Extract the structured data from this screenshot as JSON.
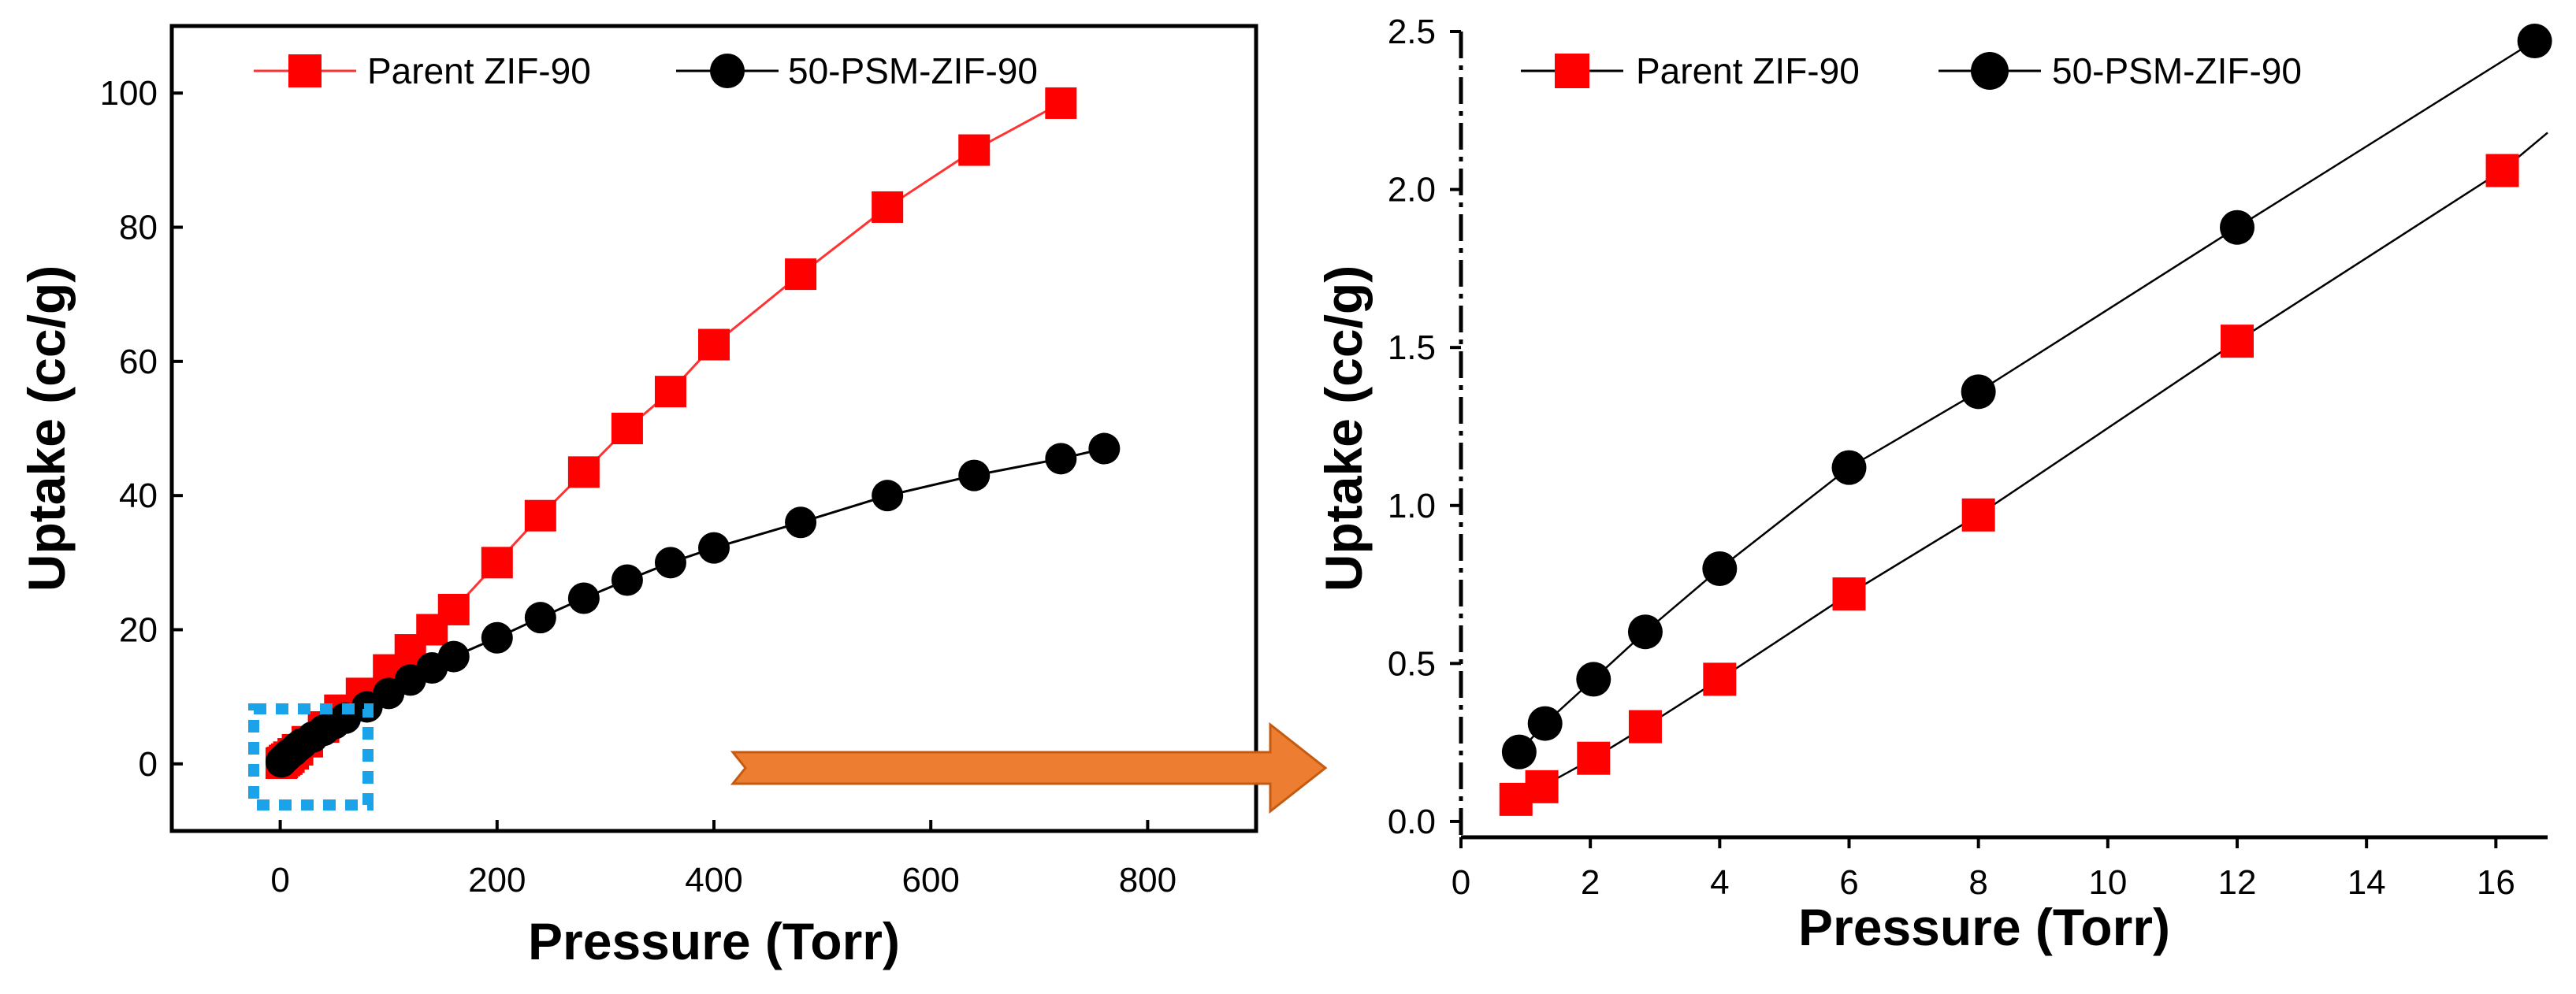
{
  "colors": {
    "parent": "#ff0000",
    "psm": "#000000",
    "parent_line_left": "#ff3333",
    "zoom_box": "#1aa3e8",
    "arrow_fill": "#ed7d31",
    "arrow_stroke": "#c55a11"
  },
  "chart_data": [
    {
      "type": "line",
      "xlabel": "Pressure (Torr)",
      "ylabel": "Uptake (cc/g)",
      "xlim": [
        -100,
        900
      ],
      "ylim": [
        -10,
        110
      ],
      "xticks": [
        0,
        200,
        400,
        600,
        800
      ],
      "yticks": [
        0,
        20,
        40,
        60,
        80,
        100
      ],
      "legend_position": "top",
      "series": [
        {
          "name": "Parent ZIF-90",
          "marker": "square",
          "x": [
            1,
            2,
            4,
            6,
            8,
            12,
            16,
            25,
            40,
            55,
            75,
            100,
            120,
            140,
            160,
            200,
            240,
            280,
            320,
            360,
            400,
            480,
            560,
            640,
            720
          ],
          "y": [
            0.1,
            0.2,
            0.5,
            0.7,
            1,
            1.5,
            2.1,
            3.3,
            5.5,
            8,
            10.5,
            14,
            17,
            20,
            23,
            30,
            37,
            43.5,
            50,
            55.5,
            62.5,
            73,
            83,
            91.5,
            98.5
          ]
        },
        {
          "name": "50-PSM-ZIF-90",
          "marker": "circle",
          "x": [
            1,
            2,
            4,
            6,
            8,
            12,
            16,
            20,
            30,
            40,
            50,
            60,
            80,
            100,
            120,
            140,
            160,
            200,
            240,
            280,
            320,
            360,
            400,
            480,
            560,
            640,
            720,
            760
          ],
          "y": [
            0.3,
            0.5,
            0.8,
            1.1,
            1.4,
            1.9,
            2.5,
            3,
            4,
            5,
            6,
            6.8,
            8.5,
            10.5,
            12.5,
            14.3,
            16,
            18.8,
            21.8,
            24.7,
            27.4,
            30,
            32.2,
            36,
            40,
            43,
            45.5,
            47
          ]
        }
      ]
    },
    {
      "type": "line",
      "xlabel": "Pressure (Torr)",
      "ylabel": "Uptake (cc/g)",
      "xlim": [
        0,
        16.8
      ],
      "ylim": [
        -0.05,
        2.5
      ],
      "xticks": [
        0,
        2,
        4,
        6,
        8,
        10,
        12,
        14,
        16
      ],
      "yticks": [
        0.0,
        0.5,
        1.0,
        1.5,
        2.0,
        2.5
      ],
      "ytick_labels": [
        "0.0",
        "0.5",
        "1.0",
        "1.5",
        "2.0",
        "2.5"
      ],
      "legend_position": "top",
      "series": [
        {
          "name": "Parent ZIF-90",
          "marker": "square",
          "x": [
            0.85,
            1.25,
            2.05,
            2.85,
            4.0,
            6.0,
            8.0,
            12.0,
            16.1
          ],
          "y": [
            0.07,
            0.11,
            0.2,
            0.3,
            0.45,
            0.72,
            0.97,
            1.52,
            2.06
          ],
          "line_extend_to": [
            16.8,
            2.18
          ]
        },
        {
          "name": "50-PSM-ZIF-90",
          "marker": "circle",
          "x": [
            0.9,
            1.3,
            2.05,
            2.85,
            4.0,
            6.0,
            8.0,
            12.0,
            16.6
          ],
          "y": [
            0.22,
            0.31,
            0.45,
            0.6,
            0.8,
            1.12,
            1.36,
            1.88,
            2.47
          ]
        }
      ]
    }
  ]
}
